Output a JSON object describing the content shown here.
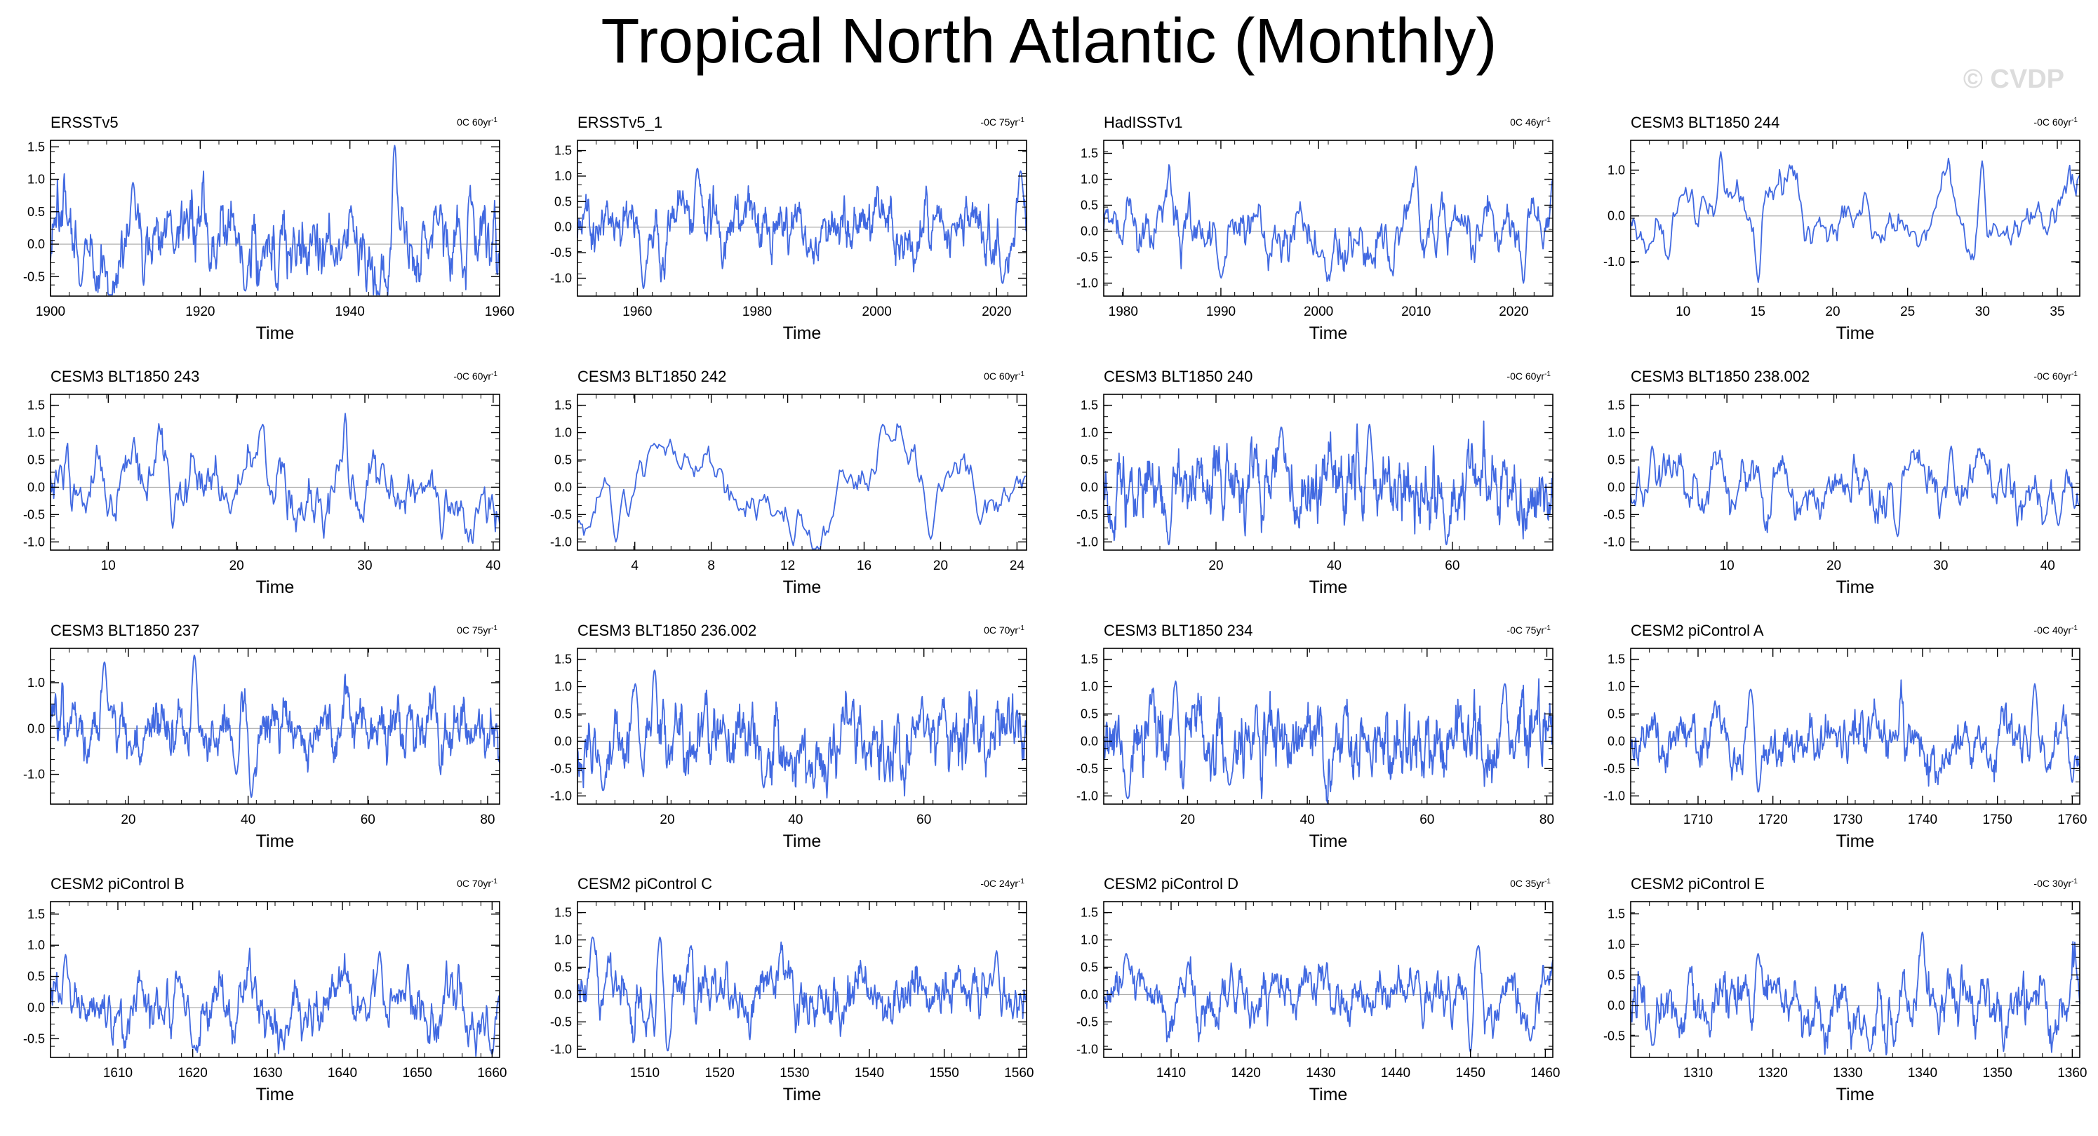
{
  "title": "Tropical North Atlantic (Monthly)",
  "watermark": "© CVDP",
  "colors": {
    "series": "#4169e1",
    "zero": "#aaaaaa",
    "frame": "#000000"
  },
  "chart_data": [
    {
      "type": "line",
      "title": "ERSSTv5",
      "trend": "0C 60yr",
      "xlabel": "Time",
      "xlim": [
        1900,
        1960
      ],
      "ylim": [
        -0.8,
        1.6
      ],
      "xticks": [
        1900,
        1920,
        1940,
        1960
      ],
      "yticks": [
        1.5,
        1.0,
        0.5,
        0.0,
        -0.5
      ],
      "ytick_labels": [
        "1.5",
        "1.0",
        "0.5",
        "0.0",
        "-0.5"
      ],
      "seed": 11,
      "amp": 0.37,
      "smooth": 0.88,
      "n": 720,
      "peaks": [
        [
          1946,
          1.52
        ],
        [
          1904,
          -0.65
        ],
        [
          1926,
          -0.72
        ],
        [
          1911,
          0.95
        ]
      ]
    },
    {
      "type": "line",
      "title": "ERSSTv5_1",
      "trend": "-0C 75yr",
      "xlabel": "Time",
      "xlim": [
        1950,
        2025
      ],
      "ylim": [
        -1.35,
        1.7
      ],
      "xticks": [
        1960,
        1980,
        2000,
        2020
      ],
      "yticks": [
        1.5,
        1.0,
        0.5,
        0.0,
        -0.5,
        -1.0
      ],
      "ytick_labels": [
        "1.5",
        "1.0",
        "0.5",
        "0.0",
        "-0.5",
        "-1.0"
      ],
      "seed": 23,
      "amp": 0.33,
      "smooth": 0.85,
      "n": 900,
      "peaks": [
        [
          1970,
          1.15
        ],
        [
          1961,
          -1.2
        ],
        [
          2024,
          1.1
        ],
        [
          2021,
          -1.1
        ]
      ]
    },
    {
      "type": "line",
      "title": "HadISSTv1",
      "trend": "0C 46yr",
      "xlabel": "Time",
      "xlim": [
        1978,
        2024
      ],
      "ylim": [
        -1.25,
        1.75
      ],
      "xticks": [
        1980,
        1990,
        2000,
        2010,
        2020
      ],
      "yticks": [
        1.5,
        1.0,
        0.5,
        0.0,
        -0.5,
        -1.0
      ],
      "ytick_labels": [
        "1.5",
        "1.0",
        "0.5",
        "0.0",
        "-0.5",
        "-1.0"
      ],
      "seed": 37,
      "amp": 0.36,
      "smooth": 0.86,
      "n": 552,
      "peaks": [
        [
          2010,
          1.25
        ],
        [
          2021,
          -1.0
        ],
        [
          1990,
          -0.9
        ],
        [
          2024,
          1.0
        ]
      ]
    },
    {
      "type": "line",
      "title": "CESM3 BLT1850 244",
      "trend": "-0C 60yr",
      "xlabel": "Time",
      "xlim": [
        6.5,
        36.5
      ],
      "ylim": [
        -1.75,
        1.65
      ],
      "xticks": [
        10,
        15,
        20,
        25,
        30,
        35
      ],
      "yticks": [
        1.0,
        0.0,
        -1.0
      ],
      "ytick_labels": [
        "1.0",
        "0.0",
        "-1.0"
      ],
      "seed": 41,
      "amp": 0.45,
      "smooth": 0.93,
      "n": 360,
      "peaks": [
        [
          12.5,
          1.4
        ],
        [
          15,
          -1.45
        ],
        [
          30,
          1.2
        ],
        [
          9,
          -0.95
        ]
      ]
    },
    {
      "type": "line",
      "title": "CESM3 BLT1850 243",
      "trend": "-0C 60yr",
      "xlabel": "Time",
      "xlim": [
        5.5,
        40.5
      ],
      "ylim": [
        -1.15,
        1.7
      ],
      "xticks": [
        10,
        20,
        30,
        40
      ],
      "yticks": [
        1.5,
        1.0,
        0.5,
        0.0,
        -0.5,
        -1.0
      ],
      "ytick_labels": [
        "1.5",
        "1.0",
        "0.5",
        "0.0",
        "-0.5",
        "-1.0"
      ],
      "seed": 53,
      "amp": 0.4,
      "smooth": 0.9,
      "n": 420,
      "peaks": [
        [
          28.5,
          1.35
        ],
        [
          36,
          -0.95
        ],
        [
          22,
          1.15
        ],
        [
          15,
          -0.75
        ]
      ]
    },
    {
      "type": "line",
      "title": "CESM3 BLT1850 242",
      "trend": "0C 60yr",
      "xlabel": "Time",
      "xlim": [
        1,
        24.5
      ],
      "ylim": [
        -1.15,
        1.7
      ],
      "xticks": [
        4,
        8,
        12,
        16,
        20,
        24
      ],
      "yticks": [
        1.5,
        1.0,
        0.5,
        0.0,
        -0.5,
        -1.0
      ],
      "ytick_labels": [
        "1.5",
        "1.0",
        "0.5",
        "0.0",
        "-0.5",
        "-1.0"
      ],
      "seed": 67,
      "amp": 0.5,
      "smooth": 0.97,
      "n": 282,
      "peaks": [
        [
          17,
          1.15
        ],
        [
          3,
          -1.0
        ],
        [
          19.5,
          -0.95
        ],
        [
          5,
          0.8
        ]
      ]
    },
    {
      "type": "line",
      "title": "CESM3 BLT1850 240",
      "trend": "-0C 60yr",
      "xlabel": "Time",
      "xlim": [
        1,
        77
      ],
      "ylim": [
        -1.15,
        1.7
      ],
      "xticks": [
        20,
        40,
        60
      ],
      "yticks": [
        1.5,
        1.0,
        0.5,
        0.0,
        -0.5,
        -1.0
      ],
      "ytick_labels": [
        "1.5",
        "1.0",
        "0.5",
        "0.0",
        "-0.5",
        "-1.0"
      ],
      "seed": 79,
      "amp": 0.36,
      "smooth": 0.8,
      "n": 912,
      "peaks": [
        [
          46,
          1.15
        ],
        [
          12,
          -1.05
        ],
        [
          31,
          1.1
        ],
        [
          59,
          -1.05
        ]
      ]
    },
    {
      "type": "line",
      "title": "CESM3 BLT1850 238.002",
      "trend": "-0C 60yr",
      "xlabel": "Time",
      "xlim": [
        1,
        43
      ],
      "ylim": [
        -1.15,
        1.7
      ],
      "xticks": [
        10,
        20,
        30,
        40
      ],
      "yticks": [
        1.5,
        1.0,
        0.5,
        0.0,
        -0.5,
        -1.0
      ],
      "ytick_labels": [
        "1.5",
        "1.0",
        "0.5",
        "0.0",
        "-0.5",
        "-1.0"
      ],
      "seed": 83,
      "amp": 0.33,
      "smooth": 0.87,
      "n": 504,
      "peaks": [
        [
          31,
          0.75
        ],
        [
          26,
          -0.9
        ],
        [
          3,
          0.75
        ],
        [
          41,
          -0.7
        ]
      ]
    },
    {
      "type": "line",
      "title": "CESM3 BLT1850 237",
      "trend": "0C 75yr",
      "xlabel": "Time",
      "xlim": [
        7,
        82
      ],
      "ylim": [
        -1.65,
        1.75
      ],
      "xticks": [
        20,
        40,
        60,
        80
      ],
      "yticks": [
        1.0,
        0.0,
        -1.0
      ],
      "ytick_labels": [
        "1.0",
        "0.0",
        "-1.0"
      ],
      "seed": 97,
      "amp": 0.36,
      "smooth": 0.82,
      "n": 900,
      "peaks": [
        [
          31,
          1.6
        ],
        [
          40.5,
          -1.5
        ],
        [
          16,
          1.45
        ],
        [
          38,
          -1.0
        ]
      ]
    },
    {
      "type": "line",
      "title": "CESM3 BLT1850 236.002",
      "trend": "0C 70yr",
      "xlabel": "Time",
      "xlim": [
        6,
        76
      ],
      "ylim": [
        -1.15,
        1.7
      ],
      "xticks": [
        20,
        40,
        60
      ],
      "yticks": [
        1.5,
        1.0,
        0.5,
        0.0,
        -0.5,
        -1.0
      ],
      "ytick_labels": [
        "1.5",
        "1.0",
        "0.5",
        "0.0",
        "-0.5",
        "-1.0"
      ],
      "seed": 103,
      "amp": 0.38,
      "smooth": 0.8,
      "n": 840,
      "peaks": [
        [
          18,
          1.3
        ],
        [
          10,
          -0.9
        ],
        [
          15,
          1.05
        ],
        [
          35,
          -0.85
        ]
      ]
    },
    {
      "type": "line",
      "title": "CESM3 BLT1850 234",
      "trend": "-0C 75yr",
      "xlabel": "Time",
      "xlim": [
        6,
        81
      ],
      "ylim": [
        -1.15,
        1.7
      ],
      "xticks": [
        20,
        40,
        60,
        80
      ],
      "yticks": [
        1.5,
        1.0,
        0.5,
        0.0,
        -0.5,
        -1.0
      ],
      "ytick_labels": [
        "1.5",
        "1.0",
        "0.5",
        "0.0",
        "-0.5",
        "-1.0"
      ],
      "seed": 109,
      "amp": 0.38,
      "smooth": 0.8,
      "n": 900,
      "peaks": [
        [
          18,
          1.1
        ],
        [
          10,
          -1.05
        ],
        [
          73,
          1.05
        ],
        [
          27,
          -0.8
        ]
      ]
    },
    {
      "type": "line",
      "title": "CESM2 piControl A",
      "trend": "-0C 40yr",
      "xlabel": "Time",
      "xlim": [
        1701,
        1761
      ],
      "ylim": [
        -1.15,
        1.7
      ],
      "xticks": [
        1710,
        1720,
        1730,
        1740,
        1750,
        1760
      ],
      "yticks": [
        1.5,
        1.0,
        0.5,
        0.0,
        -0.5,
        -1.0
      ],
      "ytick_labels": [
        "1.5",
        "1.0",
        "0.5",
        "0.0",
        "-0.5",
        "-1.0"
      ],
      "seed": 113,
      "amp": 0.3,
      "smooth": 0.86,
      "n": 720,
      "peaks": [
        [
          1755,
          1.05
        ],
        [
          1718,
          -0.95
        ],
        [
          1760,
          -0.75
        ],
        [
          1717,
          0.95
        ]
      ]
    },
    {
      "type": "line",
      "title": "CESM2 piControl B",
      "trend": "0C 70yr",
      "xlabel": "Time",
      "xlim": [
        1601,
        1661
      ],
      "ylim": [
        -0.8,
        1.7
      ],
      "xticks": [
        1610,
        1620,
        1630,
        1640,
        1650,
        1660
      ],
      "yticks": [
        1.5,
        1.0,
        0.5,
        0.0,
        -0.5
      ],
      "ytick_labels": [
        "1.5",
        "1.0",
        "0.5",
        "0.0",
        "-0.5"
      ],
      "seed": 127,
      "amp": 0.3,
      "smooth": 0.86,
      "n": 720,
      "peaks": [
        [
          1603,
          0.85
        ],
        [
          1620,
          -0.65
        ],
        [
          1645,
          0.9
        ],
        [
          1660,
          -0.75
        ]
      ]
    },
    {
      "type": "line",
      "title": "CESM2 piControl C",
      "trend": "-0C 24yr",
      "xlabel": "Time",
      "xlim": [
        1501,
        1561
      ],
      "ylim": [
        -1.15,
        1.7
      ],
      "xticks": [
        1510,
        1520,
        1530,
        1540,
        1550,
        1560
      ],
      "yticks": [
        1.5,
        1.0,
        0.5,
        0.0,
        -0.5,
        -1.0
      ],
      "ytick_labels": [
        "1.5",
        "1.0",
        "0.5",
        "0.0",
        "-0.5",
        "-1.0"
      ],
      "seed": 131,
      "amp": 0.32,
      "smooth": 0.86,
      "n": 720,
      "peaks": [
        [
          1503,
          1.05
        ],
        [
          1513,
          -1.05
        ],
        [
          1512,
          1.05
        ],
        [
          1557,
          0.8
        ]
      ]
    },
    {
      "type": "line",
      "title": "CESM2 piControl D",
      "trend": "0C 35yr",
      "xlabel": "Time",
      "xlim": [
        1401,
        1461
      ],
      "ylim": [
        -1.15,
        1.7
      ],
      "xticks": [
        1410,
        1420,
        1430,
        1440,
        1450,
        1460
      ],
      "yticks": [
        1.5,
        1.0,
        0.5,
        0.0,
        -0.5,
        -1.0
      ],
      "ytick_labels": [
        "1.5",
        "1.0",
        "0.5",
        "0.0",
        "-0.5",
        "-1.0"
      ],
      "seed": 137,
      "amp": 0.3,
      "smooth": 0.86,
      "n": 720,
      "peaks": [
        [
          1451,
          0.9
        ],
        [
          1450,
          -1.05
        ],
        [
          1404,
          0.75
        ],
        [
          1458,
          -0.85
        ]
      ]
    },
    {
      "type": "line",
      "title": "CESM2 piControl E",
      "trend": "-0C 30yr",
      "xlabel": "Time",
      "xlim": [
        1301,
        1361
      ],
      "ylim": [
        -0.85,
        1.7
      ],
      "xticks": [
        1310,
        1320,
        1330,
        1340,
        1350,
        1360
      ],
      "yticks": [
        1.5,
        1.0,
        0.5,
        0.0,
        -0.5
      ],
      "ytick_labels": [
        "1.5",
        "1.0",
        "0.5",
        "0.0",
        "-0.5"
      ],
      "seed": 139,
      "amp": 0.3,
      "smooth": 0.86,
      "n": 720,
      "peaks": [
        [
          1340,
          1.2
        ],
        [
          1333,
          -0.75
        ],
        [
          1318,
          0.85
        ],
        [
          1304,
          -0.65
        ]
      ]
    }
  ]
}
